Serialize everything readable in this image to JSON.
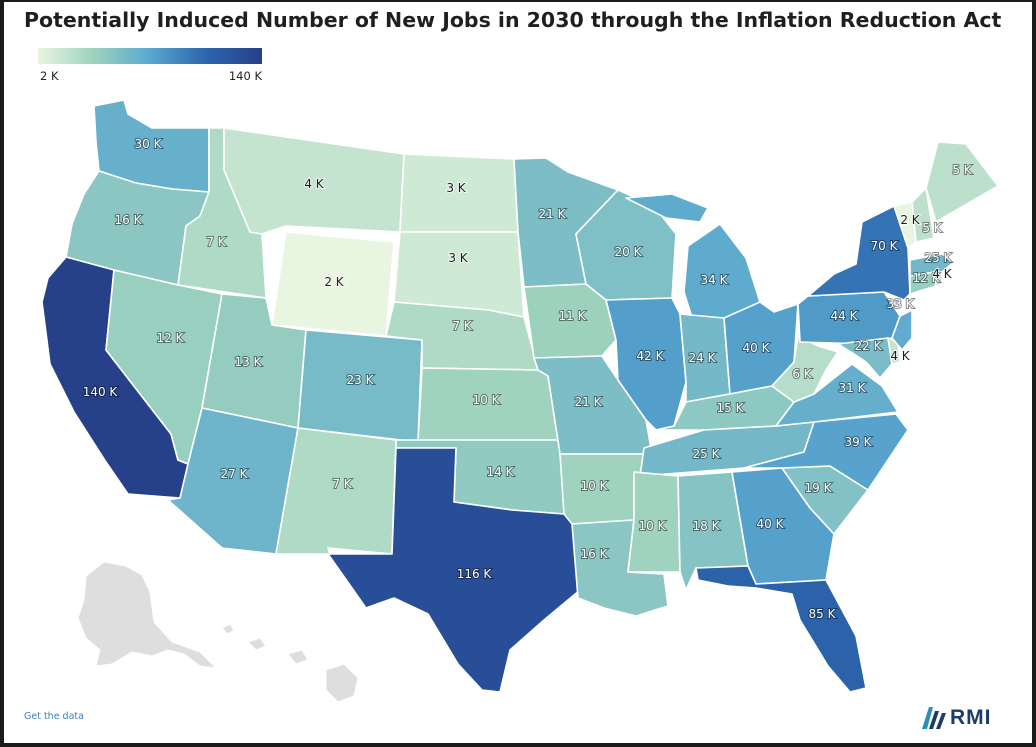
{
  "title": "Potentially Induced Number of New Jobs in 2030 through the Inflation Reduction Act",
  "legend": {
    "min_label": "2 K",
    "max_label": "140 K",
    "min_value": 2,
    "max_value": 140
  },
  "colors": {
    "scale": [
      "#e8f5e0",
      "#9dd2be",
      "#5aa8cf",
      "#2c66ad",
      "#26418a"
    ],
    "inset": "#dedede",
    "brand": "#1c3d6c",
    "link": "#3f7fbf"
  },
  "states": [
    {
      "code": "WA",
      "name": "Washington",
      "jobs_k": 30,
      "label": "30 K"
    },
    {
      "code": "OR",
      "name": "Oregon",
      "jobs_k": 16,
      "label": "16 K"
    },
    {
      "code": "CA",
      "name": "California",
      "jobs_k": 140,
      "label": "140 K"
    },
    {
      "code": "ID",
      "name": "Idaho",
      "jobs_k": 7,
      "label": "7 K"
    },
    {
      "code": "NV",
      "name": "Nevada",
      "jobs_k": 12,
      "label": "12 K"
    },
    {
      "code": "MT",
      "name": "Montana",
      "jobs_k": 4,
      "label": "4 K"
    },
    {
      "code": "WY",
      "name": "Wyoming",
      "jobs_k": 2,
      "label": "2 K"
    },
    {
      "code": "UT",
      "name": "Utah",
      "jobs_k": 13,
      "label": "13 K"
    },
    {
      "code": "AZ",
      "name": "Arizona",
      "jobs_k": 27,
      "label": "27 K"
    },
    {
      "code": "CO",
      "name": "Colorado",
      "jobs_k": 23,
      "label": "23 K"
    },
    {
      "code": "NM",
      "name": "New Mexico",
      "jobs_k": 7,
      "label": "7 K"
    },
    {
      "code": "ND",
      "name": "North Dakota",
      "jobs_k": 3,
      "label": "3 K"
    },
    {
      "code": "SD",
      "name": "South Dakota",
      "jobs_k": 3,
      "label": "3 K"
    },
    {
      "code": "NE",
      "name": "Nebraska",
      "jobs_k": 7,
      "label": "7 K"
    },
    {
      "code": "KS",
      "name": "Kansas",
      "jobs_k": 10,
      "label": "10 K"
    },
    {
      "code": "OK",
      "name": "Oklahoma",
      "jobs_k": 14,
      "label": "14 K"
    },
    {
      "code": "TX",
      "name": "Texas",
      "jobs_k": 116,
      "label": "116 K"
    },
    {
      "code": "MN",
      "name": "Minnesota",
      "jobs_k": 21,
      "label": "21 K"
    },
    {
      "code": "IA",
      "name": "Iowa",
      "jobs_k": 11,
      "label": "11 K"
    },
    {
      "code": "MO",
      "name": "Missouri",
      "jobs_k": 21,
      "label": "21 K"
    },
    {
      "code": "AR",
      "name": "Arkansas",
      "jobs_k": 10,
      "label": "10 K"
    },
    {
      "code": "LA",
      "name": "Louisiana",
      "jobs_k": 16,
      "label": "16 K"
    },
    {
      "code": "WI",
      "name": "Wisconsin",
      "jobs_k": 20,
      "label": "20 K"
    },
    {
      "code": "IL",
      "name": "Illinois",
      "jobs_k": 42,
      "label": "42 K"
    },
    {
      "code": "MI",
      "name": "Michigan",
      "jobs_k": 34,
      "label": "34 K"
    },
    {
      "code": "IN",
      "name": "Indiana",
      "jobs_k": 24,
      "label": "24 K"
    },
    {
      "code": "OH",
      "name": "Ohio",
      "jobs_k": 40,
      "label": "40 K"
    },
    {
      "code": "KY",
      "name": "Kentucky",
      "jobs_k": 15,
      "label": "15 K"
    },
    {
      "code": "TN",
      "name": "Tennessee",
      "jobs_k": 25,
      "label": "25 K"
    },
    {
      "code": "MS",
      "name": "Mississippi",
      "jobs_k": 10,
      "label": "10 K"
    },
    {
      "code": "AL",
      "name": "Alabama",
      "jobs_k": 18,
      "label": "18 K"
    },
    {
      "code": "GA",
      "name": "Georgia",
      "jobs_k": 40,
      "label": "40 K"
    },
    {
      "code": "FL",
      "name": "Florida",
      "jobs_k": 85,
      "label": "85 K"
    },
    {
      "code": "SC",
      "name": "South Carolina",
      "jobs_k": 19,
      "label": "19 K"
    },
    {
      "code": "NC",
      "name": "North Carolina",
      "jobs_k": 39,
      "label": "39 K"
    },
    {
      "code": "VA",
      "name": "Virginia",
      "jobs_k": 31,
      "label": "31 K"
    },
    {
      "code": "WV",
      "name": "West Virginia",
      "jobs_k": 6,
      "label": "6 K"
    },
    {
      "code": "PA",
      "name": "Pennsylvania",
      "jobs_k": 44,
      "label": "44 K"
    },
    {
      "code": "NY",
      "name": "New York",
      "jobs_k": 70,
      "label": "70 K"
    },
    {
      "code": "MD",
      "name": "Maryland",
      "jobs_k": 22,
      "label": "22 K"
    },
    {
      "code": "DE",
      "name": "Delaware",
      "jobs_k": 4,
      "label": "4 K"
    },
    {
      "code": "NJ",
      "name": "New Jersey",
      "jobs_k": 33,
      "label": "33 K"
    },
    {
      "code": "CT",
      "name": "Connecticut",
      "jobs_k": 12,
      "label": "12 K"
    },
    {
      "code": "RI",
      "name": "Rhode Island",
      "jobs_k": 4,
      "label": "4 K"
    },
    {
      "code": "MA",
      "name": "Massachusetts",
      "jobs_k": 25,
      "label": "25 K"
    },
    {
      "code": "VT",
      "name": "Vermont",
      "jobs_k": 2,
      "label": "2 K"
    },
    {
      "code": "NH",
      "name": "New Hampshire",
      "jobs_k": 5,
      "label": "5 K"
    },
    {
      "code": "ME",
      "name": "Maine",
      "jobs_k": 5,
      "label": "5 K"
    }
  ],
  "footer": {
    "get_data": "Get the data",
    "brand": "RMI"
  }
}
